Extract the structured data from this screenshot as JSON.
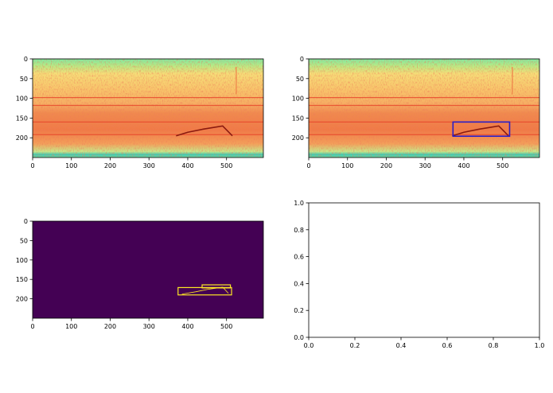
{
  "figure": {
    "panels": [
      {
        "id": "spectrogram",
        "grid": false
      },
      {
        "id": "spectrogram-detection",
        "grid": false
      },
      {
        "id": "binary-mask",
        "grid": false
      },
      {
        "id": "empty-axes",
        "grid": false
      }
    ]
  },
  "colors": {
    "detection_box": "#2a1ec8",
    "mask_background": "#440154",
    "mask_contour": "#fde725",
    "spectrogram_low": "#7fe8a0",
    "spectrogram_mid": "#f9d76a",
    "spectrogram_high": "#e8452a"
  },
  "chart_data": [
    {
      "type": "heatmap",
      "title": "",
      "xlabel": "",
      "ylabel": "",
      "xlim": [
        0,
        595
      ],
      "ylim": [
        250,
        0
      ],
      "x_ticks": [
        "0",
        "100",
        "200",
        "300",
        "400",
        "500"
      ],
      "y_ticks": [
        "0",
        "50",
        "100",
        "150",
        "200"
      ],
      "colormap": "spectral",
      "features": {
        "horizontal_lines_y": [
          98,
          118,
          160,
          192
        ],
        "call_trace": [
          [
            370,
            195
          ],
          [
            400,
            186
          ],
          [
            440,
            178
          ],
          [
            490,
            170
          ],
          [
            515,
            195
          ]
        ],
        "vertical_streak": {
          "x": 525,
          "y": [
            20,
            90
          ]
        }
      }
    },
    {
      "type": "heatmap",
      "title": "",
      "xlabel": "",
      "ylabel": "",
      "xlim": [
        0,
        595
      ],
      "ylim": [
        250,
        0
      ],
      "x_ticks": [
        "0",
        "100",
        "200",
        "300",
        "400",
        "500"
      ],
      "y_ticks": [
        "0",
        "50",
        "100",
        "150",
        "200"
      ],
      "colormap": "spectral",
      "detection_boxes": [
        {
          "x0": 372,
          "x1": 518,
          "y0": 160,
          "y1": 196
        }
      ]
    },
    {
      "type": "heatmap",
      "title": "",
      "xlabel": "",
      "ylabel": "",
      "xlim": [
        0,
        595
      ],
      "ylim": [
        250,
        0
      ],
      "x_ticks": [
        "0",
        "100",
        "200",
        "300",
        "400",
        "500"
      ],
      "y_ticks": [
        "0",
        "50",
        "100",
        "150",
        "200"
      ],
      "colormap": "viridis",
      "mask_boxes": [
        {
          "x0": 375,
          "x1": 513,
          "y0": 171,
          "y1": 190
        },
        {
          "x0": 437,
          "x1": 510,
          "y0": 164,
          "y1": 172
        }
      ],
      "mask_trace": [
        [
          385,
          188
        ],
        [
          420,
          182
        ],
        [
          450,
          176
        ],
        [
          490,
          170
        ],
        [
          505,
          186
        ]
      ]
    },
    {
      "type": "line",
      "title": "",
      "xlabel": "",
      "ylabel": "",
      "xlim": [
        0,
        1
      ],
      "ylim": [
        0,
        1
      ],
      "x_ticks": [
        "0.0",
        "0.2",
        "0.4",
        "0.6",
        "0.8",
        "1.0"
      ],
      "y_ticks": [
        "0.0",
        "0.2",
        "0.4",
        "0.6",
        "0.8",
        "1.0"
      ],
      "series": []
    }
  ]
}
